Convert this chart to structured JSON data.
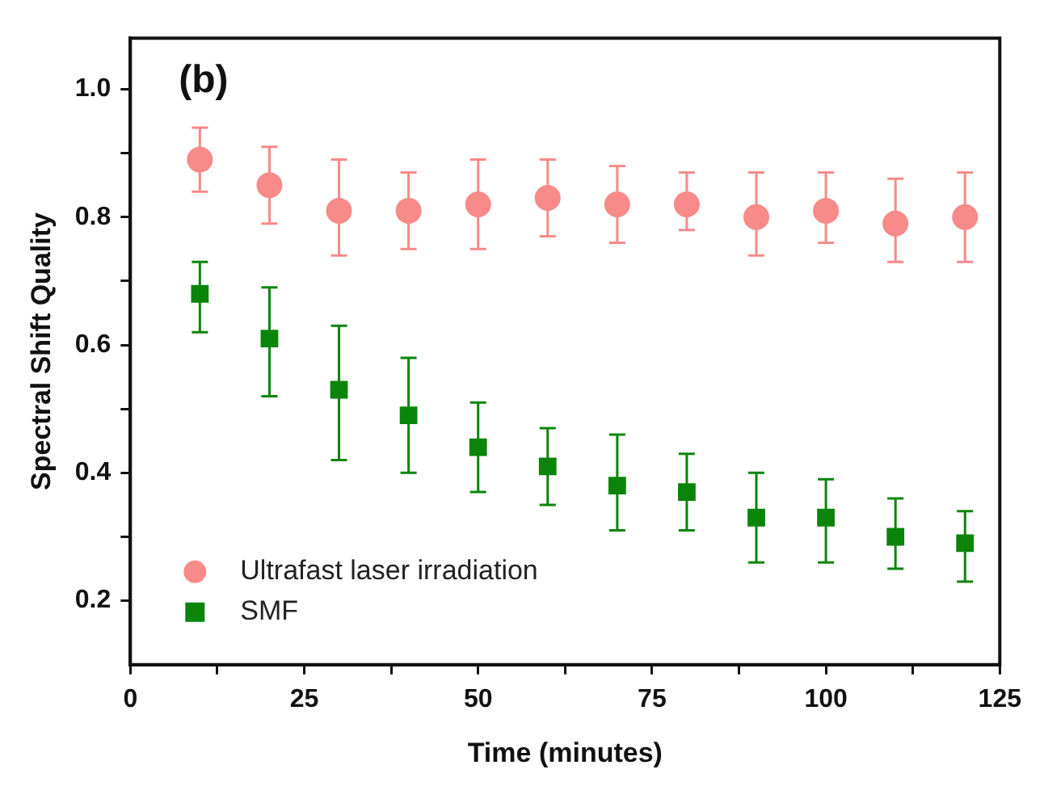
{
  "chart_data": {
    "type": "scatter",
    "xlabel": "Time (minutes)",
    "ylabel": "Spectral Shift Quality",
    "annotations": [
      "(b)"
    ],
    "x": [
      10,
      20,
      30,
      40,
      50,
      60,
      70,
      80,
      90,
      100,
      110,
      120
    ],
    "series": [
      {
        "name": "Ultrafast laser irradiation",
        "color": "#f88a8a",
        "marker": "circle",
        "values": [
          0.89,
          0.85,
          0.81,
          0.81,
          0.82,
          0.83,
          0.82,
          0.82,
          0.8,
          0.81,
          0.79,
          0.8
        ],
        "errors": [
          [
            0.84,
            0.94
          ],
          [
            0.79,
            0.91
          ],
          [
            0.74,
            0.89
          ],
          [
            0.75,
            0.87
          ],
          [
            0.75,
            0.89
          ],
          [
            0.77,
            0.89
          ],
          [
            0.76,
            0.88
          ],
          [
            0.78,
            0.87
          ],
          [
            0.74,
            0.87
          ],
          [
            0.76,
            0.87
          ],
          [
            0.73,
            0.86
          ],
          [
            0.73,
            0.87
          ]
        ]
      },
      {
        "name": "SMF",
        "color": "#0a850a",
        "marker": "square",
        "values": [
          0.68,
          0.61,
          0.53,
          0.49,
          0.44,
          0.41,
          0.38,
          0.37,
          0.33,
          0.33,
          0.3,
          0.29
        ],
        "errors": [
          [
            0.62,
            0.73
          ],
          [
            0.52,
            0.69
          ],
          [
            0.42,
            0.63
          ],
          [
            0.4,
            0.58
          ],
          [
            0.37,
            0.51
          ],
          [
            0.35,
            0.47
          ],
          [
            0.31,
            0.46
          ],
          [
            0.31,
            0.43
          ],
          [
            0.26,
            0.4
          ],
          [
            0.26,
            0.39
          ],
          [
            0.25,
            0.36
          ],
          [
            0.23,
            0.34
          ]
        ]
      }
    ],
    "xlim": [
      0,
      125
    ],
    "xticks": [
      0,
      {
        "value": 12.5,
        "label": null
      },
      25,
      {
        "value": 37.5,
        "label": null
      },
      50,
      {
        "value": 62.5,
        "label": null
      },
      75,
      {
        "value": 87.5,
        "label": null
      },
      100,
      {
        "value": 112.5,
        "label": null
      },
      125
    ],
    "ylim": [
      0.1,
      1.08
    ],
    "yticks": [
      {
        "value": 0.2,
        "label": "0.2"
      },
      {
        "value": 0.3,
        "label": null
      },
      {
        "value": 0.4,
        "label": "0.4"
      },
      {
        "value": 0.5,
        "label": null
      },
      {
        "value": 0.6,
        "label": "0.6"
      },
      {
        "value": 0.7,
        "label": null
      },
      {
        "value": 0.8,
        "label": "0.8"
      },
      {
        "value": 0.9,
        "label": null
      },
      {
        "value": 1.0,
        "label": "1.0"
      }
    ],
    "grid": false,
    "legend": "bottom left"
  }
}
